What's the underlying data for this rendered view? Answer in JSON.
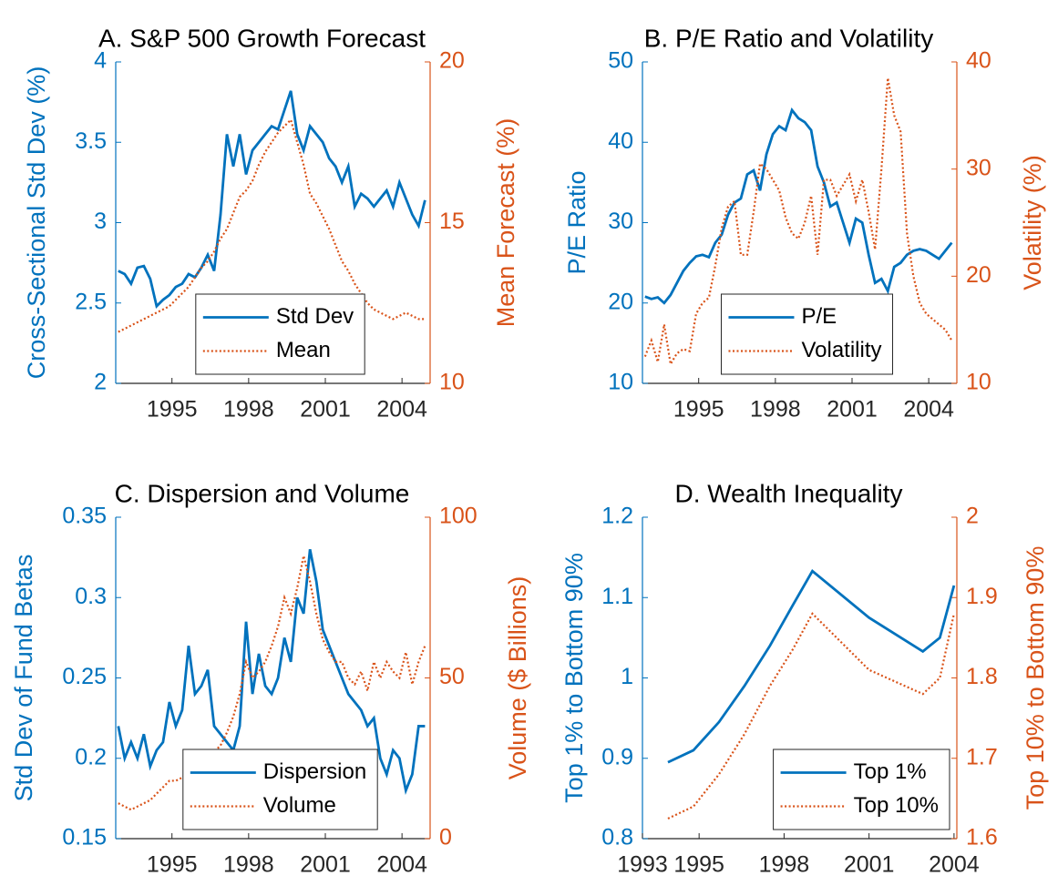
{
  "chart_data": [
    {
      "type": "line",
      "title": "A. S&P 500 Growth Forecast",
      "ylabel": "Cross-Sectional Std Dev (%)",
      "y2label": "Mean Forecast (%)",
      "x": [
        1992.9,
        1993.15,
        1993.4,
        1993.65,
        1993.9,
        1994.15,
        1994.4,
        1994.65,
        1994.9,
        1995.15,
        1995.4,
        1995.65,
        1995.9,
        1996.15,
        1996.4,
        1996.65,
        1996.9,
        1997.15,
        1997.4,
        1997.65,
        1997.9,
        1998.15,
        1998.4,
        1998.65,
        1998.9,
        1999.15,
        1999.4,
        1999.65,
        1999.9,
        2000.15,
        2000.4,
        2000.65,
        2000.9,
        2001.15,
        2001.4,
        2001.65,
        2001.9,
        2002.15,
        2002.4,
        2002.65,
        2002.9,
        2003.15,
        2003.4,
        2003.65,
        2003.9,
        2004.15,
        2004.4,
        2004.65,
        2004.9
      ],
      "series": [
        {
          "name": "Std Dev",
          "color": "#0072bd",
          "axis": "y",
          "linestyle": "solid",
          "values": [
            2.7,
            2.68,
            2.62,
            2.72,
            2.73,
            2.65,
            2.48,
            2.52,
            2.55,
            2.6,
            2.62,
            2.68,
            2.66,
            2.72,
            2.8,
            2.7,
            3.05,
            3.55,
            3.35,
            3.55,
            3.3,
            3.45,
            3.5,
            3.55,
            3.6,
            3.58,
            3.7,
            3.82,
            3.55,
            3.45,
            3.6,
            3.55,
            3.5,
            3.4,
            3.35,
            3.25,
            3.35,
            3.1,
            3.18,
            3.15,
            3.1,
            3.15,
            3.2,
            3.1,
            3.25,
            3.15,
            3.05,
            2.98,
            3.14
          ]
        },
        {
          "name": "Mean",
          "color": "#d95319",
          "axis": "y2",
          "linestyle": "dotted",
          "values": [
            11.6,
            11.7,
            11.8,
            11.9,
            12.0,
            12.1,
            12.2,
            12.3,
            12.4,
            12.6,
            12.8,
            13.0,
            13.3,
            13.6,
            13.8,
            14.1,
            14.5,
            14.8,
            15.3,
            15.8,
            16.0,
            16.3,
            16.8,
            17.2,
            17.5,
            17.8,
            18.0,
            18.2,
            17.5,
            16.8,
            15.9,
            15.6,
            15.2,
            14.8,
            14.3,
            13.8,
            13.5,
            13.1,
            12.8,
            12.5,
            12.3,
            12.2,
            12.1,
            12.0,
            12.1,
            12.2,
            12.1,
            12.0,
            12.0
          ]
        }
      ],
      "xlim": [
        1992.8,
        2005.1
      ],
      "xticks": [
        1995,
        1998,
        2001,
        2004
      ],
      "ylim": [
        2,
        4
      ],
      "yticks": [
        2,
        2.5,
        3,
        3.5,
        4
      ],
      "y2lim": [
        10,
        20
      ],
      "y2ticks": [
        10,
        15,
        20
      ],
      "legend": "lower center"
    },
    {
      "type": "line",
      "title": "B. P/E Ratio and Volatility",
      "ylabel": "P/E Ratio",
      "y2label": "Volatility (%)",
      "x": [
        1992.9,
        1993.15,
        1993.4,
        1993.65,
        1993.9,
        1994.15,
        1994.4,
        1994.65,
        1994.9,
        1995.15,
        1995.4,
        1995.65,
        1995.9,
        1996.15,
        1996.4,
        1996.65,
        1996.9,
        1997.15,
        1997.4,
        1997.65,
        1997.9,
        1998.15,
        1998.4,
        1998.65,
        1998.9,
        1999.15,
        1999.4,
        1999.65,
        1999.9,
        2000.15,
        2000.4,
        2000.65,
        2000.9,
        2001.15,
        2001.4,
        2001.65,
        2001.9,
        2002.15,
        2002.4,
        2002.65,
        2002.9,
        2003.15,
        2003.4,
        2003.65,
        2003.9,
        2004.15,
        2004.4,
        2004.65,
        2004.9
      ],
      "series": [
        {
          "name": "P/E",
          "color": "#0072bd",
          "axis": "y",
          "linestyle": "solid",
          "values": [
            20.8,
            20.5,
            20.7,
            20.0,
            21.0,
            22.5,
            24.0,
            25.0,
            25.8,
            26.0,
            25.7,
            27.5,
            28.5,
            31.0,
            32.5,
            33.0,
            36.0,
            36.5,
            34.0,
            38.5,
            41.0,
            42.0,
            41.5,
            44.0,
            43.0,
            42.5,
            41.5,
            37.0,
            35.0,
            32.0,
            32.5,
            30.0,
            27.5,
            30.5,
            30.0,
            26.0,
            22.5,
            23.0,
            21.5,
            24.5,
            25.0,
            26.0,
            26.5,
            26.7,
            26.5,
            26.0,
            25.5,
            26.5,
            27.5
          ]
        },
        {
          "name": "Volatility",
          "color": "#d95319",
          "axis": "y2",
          "linestyle": "dotted",
          "values": [
            12.5,
            14.0,
            12.0,
            15.5,
            11.8,
            12.8,
            13.2,
            13.0,
            16.5,
            17.5,
            18.0,
            21.0,
            24.5,
            26.5,
            27.0,
            22.0,
            22.0,
            26.0,
            30.5,
            30.0,
            29.0,
            28.0,
            25.5,
            24.0,
            23.5,
            25.0,
            27.5,
            22.0,
            29.0,
            29.0,
            27.5,
            28.5,
            29.5,
            27.0,
            29.0,
            26.0,
            22.5,
            30.0,
            38.5,
            35.0,
            33.5,
            24.0,
            20.0,
            17.5,
            16.5,
            16.0,
            15.5,
            15.0,
            14.0
          ]
        }
      ],
      "xlim": [
        1992.8,
        2005.1
      ],
      "xticks": [
        1995,
        1998,
        2001,
        2004
      ],
      "ylim": [
        10,
        50
      ],
      "yticks": [
        10,
        20,
        30,
        40,
        50
      ],
      "y2lim": [
        10,
        40
      ],
      "y2ticks": [
        10,
        20,
        30,
        40
      ],
      "legend": "lower center"
    },
    {
      "type": "line",
      "title": "C. Dispersion and Volume",
      "ylabel": "Std Dev of Fund Betas",
      "y2label": "Volume ($ Billions)",
      "x": [
        1992.9,
        1993.15,
        1993.4,
        1993.65,
        1993.9,
        1994.15,
        1994.4,
        1994.65,
        1994.9,
        1995.15,
        1995.4,
        1995.65,
        1995.9,
        1996.15,
        1996.4,
        1996.65,
        1996.9,
        1997.15,
        1997.4,
        1997.65,
        1997.9,
        1998.15,
        1998.4,
        1998.65,
        1998.9,
        1999.15,
        1999.4,
        1999.65,
        1999.9,
        2000.15,
        2000.4,
        2000.65,
        2000.9,
        2001.15,
        2001.4,
        2001.65,
        2001.9,
        2002.15,
        2002.4,
        2002.65,
        2002.9,
        2003.15,
        2003.4,
        2003.65,
        2003.9,
        2004.15,
        2004.4,
        2004.65,
        2004.9
      ],
      "series": [
        {
          "name": "Dispersion",
          "color": "#0072bd",
          "axis": "y",
          "linestyle": "solid",
          "values": [
            0.22,
            0.2,
            0.21,
            0.2,
            0.215,
            0.195,
            0.205,
            0.21,
            0.235,
            0.22,
            0.23,
            0.27,
            0.24,
            0.245,
            0.255,
            0.22,
            0.215,
            0.21,
            0.205,
            0.22,
            0.285,
            0.24,
            0.265,
            0.245,
            0.24,
            0.25,
            0.275,
            0.26,
            0.3,
            0.29,
            0.33,
            0.31,
            0.28,
            0.27,
            0.26,
            0.25,
            0.24,
            0.235,
            0.23,
            0.22,
            0.225,
            0.2,
            0.19,
            0.205,
            0.2,
            0.18,
            0.19,
            0.22,
            0.22
          ]
        },
        {
          "name": "Volume",
          "color": "#d95319",
          "axis": "y2",
          "linestyle": "dotted",
          "values": [
            11,
            10,
            9,
            10,
            11,
            12,
            14,
            16,
            18,
            18,
            19,
            21,
            22,
            24,
            26,
            27,
            29,
            33,
            38,
            45,
            55,
            50,
            52,
            55,
            60,
            66,
            75,
            70,
            78,
            88,
            80,
            70,
            62,
            58,
            55,
            55,
            50,
            48,
            52,
            46,
            55,
            50,
            55,
            52,
            50,
            58,
            48,
            55,
            60
          ]
        }
      ],
      "xlim": [
        1992.8,
        2005.1
      ],
      "xticks": [
        1995,
        1998,
        2001,
        2004
      ],
      "ylim": [
        0.15,
        0.35
      ],
      "yticks": [
        0.15,
        0.2,
        0.25,
        0.3,
        0.35
      ],
      "y2lim": [
        0,
        100
      ],
      "y2ticks": [
        0,
        50,
        100
      ],
      "legend": "lower center"
    },
    {
      "type": "line",
      "title": "D. Wealth Inequality",
      "ylabel": "Top 1% to Bottom 90%",
      "y2label": "Top 10% to Bottom 90%",
      "x": [
        1993.9,
        1994.8,
        1995.7,
        1996.6,
        1997.5,
        1998.3,
        1999.0,
        2001.0,
        2002.9,
        2003.5,
        2004.0
      ],
      "series": [
        {
          "name": "Top 1%",
          "color": "#0072bd",
          "axis": "y",
          "linestyle": "solid",
          "values": [
            0.895,
            0.91,
            0.945,
            0.99,
            1.04,
            1.09,
            1.133,
            1.075,
            1.033,
            1.05,
            1.115
          ]
        },
        {
          "name": "Top 10%",
          "color": "#d95319",
          "axis": "y2",
          "linestyle": "dotted",
          "values": [
            1.625,
            1.64,
            1.68,
            1.73,
            1.79,
            1.835,
            1.88,
            1.81,
            1.78,
            1.8,
            1.88
          ]
        }
      ],
      "xlim": [
        1993,
        2004.1
      ],
      "xticks": [
        1993,
        1995,
        1998,
        2001,
        2004
      ],
      "ylim": [
        0.8,
        1.2
      ],
      "yticks": [
        0.8,
        0.9,
        1,
        1.1,
        1.2
      ],
      "y2lim": [
        1.6,
        2
      ],
      "y2ticks": [
        1.6,
        1.7,
        1.8,
        1.9,
        2
      ],
      "legend": "lower right"
    }
  ]
}
